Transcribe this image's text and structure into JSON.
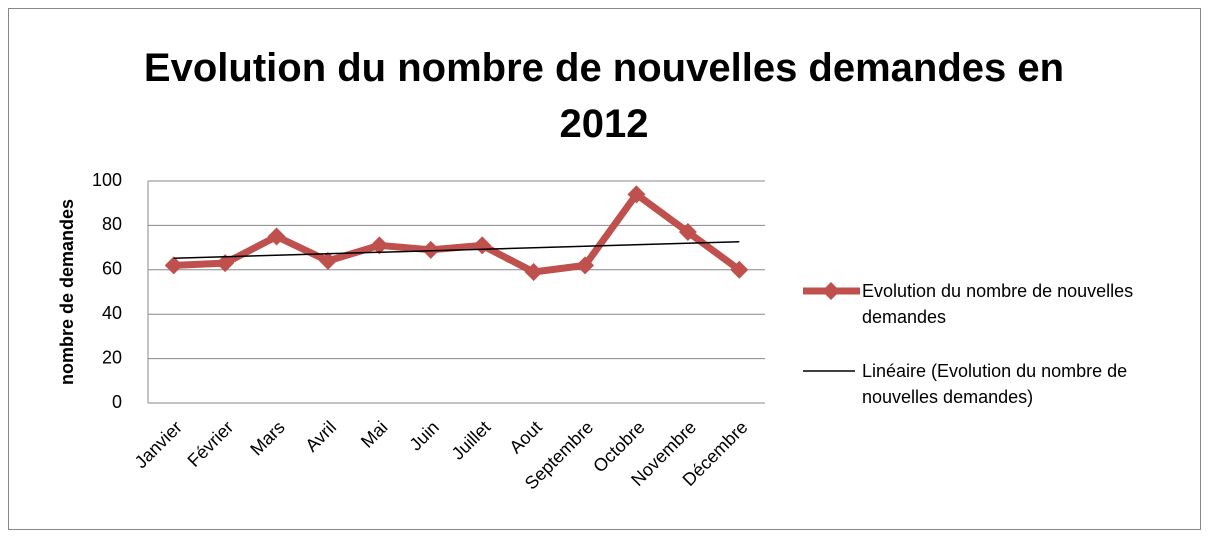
{
  "chart_data": {
    "type": "line",
    "title": "Evolution du nombre de nouvelles demandes en 2012",
    "ylabel": "nombre de demandes",
    "categories": [
      "Janvier",
      "Février",
      "Mars",
      "Avril",
      "Mai",
      "Juin",
      "Juillet",
      "Aout",
      "Septembre",
      "Octobre",
      "Novembre",
      "Décembre"
    ],
    "series": [
      {
        "name": "Evolution du nombre de nouvelles demandes",
        "color": "#c0504d",
        "values": [
          62,
          63,
          75,
          64,
          71,
          69,
          71,
          59,
          62,
          94,
          77,
          60
        ]
      }
    ],
    "trendline": {
      "name": "Linéaire (Evolution du nombre de nouvelles demandes)",
      "color": "#000000"
    },
    "ylim": [
      0,
      100
    ],
    "yticks": [
      0,
      20,
      40,
      60,
      80,
      100
    ],
    "grid": true,
    "legend": "right"
  }
}
